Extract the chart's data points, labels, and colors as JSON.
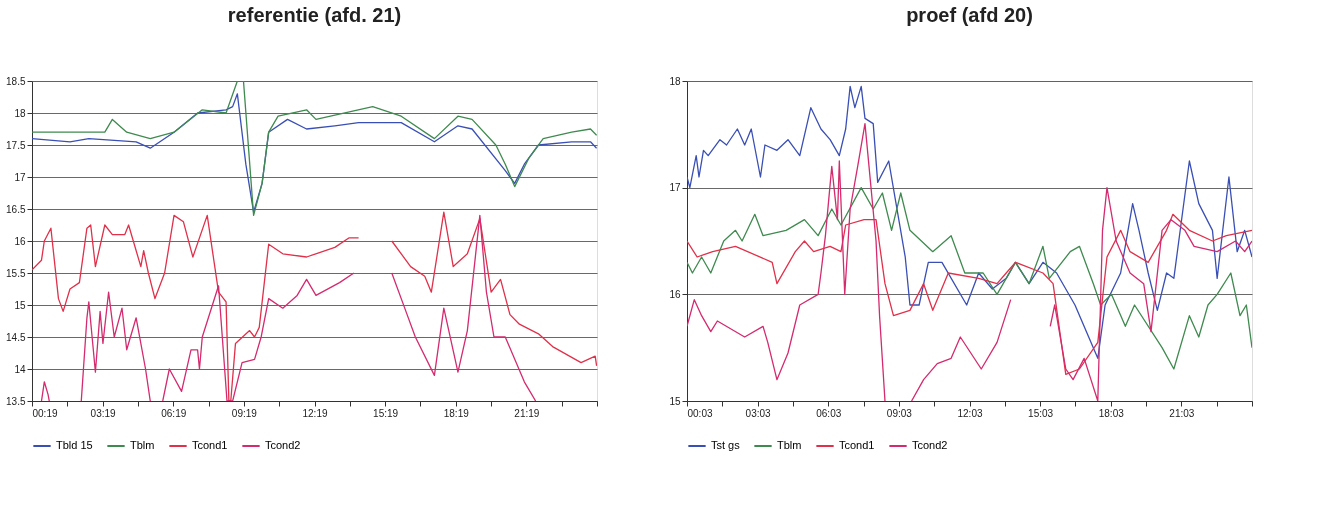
{
  "chart_data": [
    {
      "type": "line",
      "title": "referentie (afd. 21)",
      "grid": "y",
      "legend": "bottom",
      "xlim": [
        0.3167,
        24.3167
      ],
      "xticks": [
        {
          "value": 0.3167,
          "label": "00:19"
        },
        {
          "value": 1.8167,
          "label": null
        },
        {
          "value": 3.3167,
          "label": "03:19"
        },
        {
          "value": 4.8167,
          "label": null
        },
        {
          "value": 6.3167,
          "label": "06:19"
        },
        {
          "value": 7.8167,
          "label": null
        },
        {
          "value": 9.3167,
          "label": "09:19"
        },
        {
          "value": 10.8167,
          "label": null
        },
        {
          "value": 12.3167,
          "label": "12:19"
        },
        {
          "value": 13.8167,
          "label": null
        },
        {
          "value": 15.3167,
          "label": "15:19"
        },
        {
          "value": 16.8167,
          "label": null
        },
        {
          "value": 18.3167,
          "label": "18:19"
        },
        {
          "value": 19.8167,
          "label": null
        },
        {
          "value": 21.3167,
          "label": "21:19"
        },
        {
          "value": 22.8167,
          "label": null
        },
        {
          "value": 24.3167,
          "label": null
        }
      ],
      "ylim": [
        13.5,
        18.5
      ],
      "yticks": [
        13.5,
        14,
        14.5,
        15,
        15.5,
        16,
        16.5,
        17,
        17.5,
        18,
        18.5
      ],
      "series": [
        {
          "name": "Tbld 15",
          "color": "#3a4fb5",
          "x": [
            0.32,
            1.93,
            2.73,
            4.74,
            5.34,
            6.35,
            7.35,
            8.56,
            8.84,
            9.04,
            9.4,
            9.73,
            10.09,
            10.37,
            11.17,
            11.98,
            13.18,
            14.19,
            16.0,
            17.41,
            18.41,
            19.01,
            20.42,
            20.82,
            21.23,
            21.83,
            23.24,
            24.04,
            24.3
          ],
          "values": [
            17.6,
            17.55,
            17.6,
            17.55,
            17.45,
            17.7,
            18.0,
            18.05,
            18.1,
            18.3,
            17.2,
            16.45,
            16.9,
            17.7,
            17.9,
            17.75,
            17.8,
            17.85,
            17.85,
            17.55,
            17.8,
            17.75,
            17.1,
            16.9,
            17.2,
            17.5,
            17.55,
            17.55,
            17.45
          ]
        },
        {
          "name": "Tblm",
          "color": "#3f8a4f",
          "x": [
            0.32,
            3.41,
            3.73,
            4.34,
            5.34,
            6.35,
            7.55,
            8.56,
            9.04,
            9.2,
            9.3,
            9.73,
            10.09,
            10.37,
            10.77,
            11.98,
            12.38,
            14.79,
            16.0,
            17.41,
            18.41,
            19.01,
            20.02,
            20.42,
            20.82,
            21.43,
            22.03,
            23.24,
            24.04,
            24.3
          ],
          "values": [
            17.7,
            17.7,
            17.9,
            17.7,
            17.6,
            17.7,
            18.05,
            18.0,
            18.5,
            null,
            18.5,
            16.4,
            16.9,
            17.7,
            17.95,
            18.05,
            17.9,
            18.1,
            17.95,
            17.6,
            17.95,
            17.9,
            17.5,
            17.2,
            16.85,
            17.3,
            17.6,
            17.7,
            17.75,
            17.65
          ]
        },
        {
          "name": "Tcond1",
          "color": "#e0304a",
          "x": [
            0.32,
            0.72,
            0.84,
            1.12,
            1.44,
            1.64,
            1.93,
            2.33,
            2.65,
            2.81,
            3.01,
            3.41,
            3.73,
            4.26,
            4.42,
            4.94,
            5.06,
            5.26,
            5.54,
            5.95,
            6.35,
            6.75,
            7.15,
            7.76,
            8.24,
            8.56,
            8.68,
            8.76,
            8.96,
            9.56,
            9.77,
            9.97,
            10.37,
            10.97,
            11.98,
            13.18,
            13.79,
            14.19,
            14.5,
            15.6,
            16.4,
            17.0,
            17.28,
            17.81,
            18.21,
            18.81,
            19.34,
            19.82,
            20.22,
            20.62,
            21.02,
            21.83,
            22.43,
            23.64,
            24.24,
            24.3
          ],
          "values": [
            15.55,
            15.7,
            16.0,
            16.2,
            15.1,
            14.9,
            15.25,
            15.35,
            16.2,
            16.25,
            15.6,
            16.25,
            16.1,
            16.1,
            16.25,
            15.6,
            15.85,
            15.5,
            15.1,
            15.5,
            16.4,
            16.3,
            15.75,
            16.4,
            15.2,
            15.05,
            13.5,
            13.5,
            14.4,
            14.6,
            14.5,
            14.65,
            15.95,
            15.8,
            15.75,
            15.9,
            16.05,
            16.05,
            null,
            16.0,
            15.6,
            15.45,
            15.2,
            16.45,
            15.6,
            15.8,
            16.35,
            15.2,
            15.4,
            14.85,
            14.7,
            14.55,
            14.35,
            14.1,
            14.2,
            14.05
          ]
        },
        {
          "name": "Tcond2",
          "color": "#d42a6e",
          "x": [
            0.72,
            0.84,
            1.0,
            1.05,
            1.2,
            2.41,
            2.65,
            2.73,
            3.01,
            3.21,
            3.33,
            3.57,
            3.81,
            4.14,
            4.34,
            4.74,
            5.14,
            5.34,
            5.6,
            5.87,
            6.15,
            6.67,
            7.07,
            7.35,
            7.43,
            7.55,
            8.24,
            8.6,
            8.84,
            9.24,
            9.77,
            10.05,
            10.37,
            10.97,
            11.58,
            11.98,
            12.38,
            13.38,
            13.99,
            14.3,
            15.6,
            16.2,
            16.6,
            17.41,
            17.81,
            18.41,
            18.81,
            19.34,
            19.62,
            19.94,
            20.42,
            21.23,
            21.71
          ],
          "values": [
            13.5,
            13.8,
            13.6,
            13.5,
            null,
            13.5,
            14.8,
            15.05,
            13.95,
            14.9,
            14.4,
            15.2,
            14.5,
            14.95,
            14.3,
            14.8,
            14.0,
            13.5,
            null,
            13.5,
            14.0,
            13.65,
            14.3,
            14.3,
            14.0,
            14.5,
            15.3,
            13.5,
            13.5,
            14.1,
            14.15,
            14.5,
            15.1,
            14.95,
            15.15,
            15.4,
            15.15,
            15.35,
            15.5,
            null,
            15.5,
            14.9,
            14.5,
            13.9,
            14.95,
            13.95,
            14.6,
            16.4,
            15.2,
            14.5,
            14.5,
            13.8,
            13.5
          ]
        }
      ]
    },
    {
      "type": "line",
      "title": "proef (afd 20)",
      "grid": "y",
      "legend": "bottom",
      "xlim": [
        0.05,
        24.05
      ],
      "xticks": [
        {
          "value": 0.05,
          "label": "00:03"
        },
        {
          "value": 1.55,
          "label": null
        },
        {
          "value": 3.05,
          "label": "03:03"
        },
        {
          "value": 4.55,
          "label": null
        },
        {
          "value": 6.05,
          "label": "06:03"
        },
        {
          "value": 7.55,
          "label": null
        },
        {
          "value": 9.05,
          "label": "09:03"
        },
        {
          "value": 10.55,
          "label": null
        },
        {
          "value": 12.05,
          "label": "12:03"
        },
        {
          "value": 13.55,
          "label": null
        },
        {
          "value": 15.05,
          "label": "15:03"
        },
        {
          "value": 16.55,
          "label": null
        },
        {
          "value": 18.05,
          "label": "18:03"
        },
        {
          "value": 19.55,
          "label": null
        },
        {
          "value": 21.05,
          "label": "21:03"
        },
        {
          "value": 22.55,
          "label": null
        },
        {
          "value": 24.05,
          "label": null
        }
      ],
      "ylim": [
        15,
        18
      ],
      "yticks": [
        15,
        16,
        17,
        18
      ],
      "series": [
        {
          "name": "Tst gs",
          "color": "#3a4fb5",
          "x": [
            0.05,
            0.17,
            0.44,
            0.56,
            0.75,
            0.95,
            1.45,
            1.73,
            2.19,
            2.5,
            2.78,
            3.17,
            3.36,
            3.87,
            4.34,
            4.84,
            5.31,
            5.74,
            6.13,
            6.52,
            6.79,
            6.98,
            7.18,
            7.45,
            7.61,
            7.96,
            8.15,
            8.62,
            8.93,
            9.32,
            9.52,
            9.91,
            10.3,
            10.88,
            11.93,
            12.44,
            13.02,
            13.61,
            14.0,
            14.58,
            15.17,
            15.75,
            16.53,
            17.5,
            17.81,
            18.47,
            18.98,
            19.25,
            19.64,
            20.03,
            20.42,
            20.73,
            21.39,
            21.79,
            22.37,
            22.57,
            23.07,
            23.42,
            23.74,
            24.05
          ],
          "values": [
            17.1,
            17.0,
            17.3,
            17.1,
            17.35,
            17.3,
            17.45,
            17.4,
            17.55,
            17.4,
            17.55,
            17.1,
            17.4,
            17.35,
            17.45,
            17.3,
            17.75,
            17.55,
            17.45,
            17.3,
            17.55,
            17.95,
            17.75,
            17.95,
            17.65,
            17.6,
            17.05,
            17.25,
            16.85,
            16.35,
            15.9,
            15.9,
            16.3,
            16.3,
            15.9,
            16.2,
            16.05,
            16.15,
            16.3,
            16.1,
            16.3,
            16.2,
            15.9,
            15.4,
            15.9,
            16.2,
            16.85,
            16.6,
            16.2,
            15.85,
            16.2,
            16.15,
            17.25,
            16.85,
            16.6,
            16.15,
            17.1,
            16.4,
            16.6,
            16.35
          ]
        },
        {
          "name": "Tblm",
          "color": "#3f8a4f",
          "x": [
            0.05,
            0.28,
            0.67,
            1.06,
            1.61,
            2.11,
            2.39,
            2.93,
            3.28,
            4.26,
            5.04,
            5.62,
            6.2,
            6.59,
            7.45,
            7.96,
            8.35,
            8.74,
            9.13,
            9.52,
            10.49,
            11.27,
            11.85,
            12.63,
            13.22,
            14.0,
            14.58,
            15.17,
            15.44,
            16.33,
            16.72,
            17.31,
            17.62,
            18.08,
            18.67,
            19.06,
            20.23,
            20.73,
            21.39,
            21.79,
            22.18,
            22.57,
            23.15,
            23.54,
            23.81,
            24.05
          ],
          "values": [
            16.3,
            16.2,
            16.35,
            16.2,
            16.5,
            16.6,
            16.5,
            16.75,
            16.55,
            16.6,
            16.7,
            16.55,
            16.8,
            16.65,
            17.0,
            16.8,
            16.95,
            16.6,
            16.95,
            16.6,
            16.4,
            16.55,
            16.2,
            16.2,
            16.0,
            16.3,
            16.1,
            16.45,
            16.15,
            16.4,
            16.45,
            16.1,
            15.9,
            16.0,
            15.7,
            15.9,
            15.5,
            15.3,
            15.8,
            15.6,
            15.9,
            16.0,
            16.2,
            15.8,
            15.9,
            15.5
          ]
        },
        {
          "name": "Tcond1",
          "color": "#e0304a",
          "x": [
            0.05,
            0.48,
            1.14,
            2.11,
            3.67,
            3.87,
            4.65,
            5.04,
            5.43,
            6.13,
            6.59,
            6.79,
            7.57,
            8.08,
            8.46,
            8.82,
            9.52,
            10.1,
            10.49,
            11.15,
            12.44,
            13.22,
            13.61,
            14.0,
            15.17,
            15.6,
            16.14,
            16.72,
            17.5,
            17.89,
            18.47,
            18.87,
            19.64,
            20.42,
            20.69,
            21.39,
            22.37,
            22.96,
            24.05
          ],
          "values": [
            16.5,
            16.35,
            16.4,
            16.45,
            16.3,
            16.1,
            16.4,
            16.5,
            16.4,
            16.45,
            16.4,
            16.65,
            16.7,
            16.7,
            16.1,
            15.8,
            15.85,
            16.1,
            15.85,
            16.2,
            16.15,
            16.1,
            16.2,
            16.3,
            16.2,
            16.1,
            15.25,
            15.3,
            15.55,
            16.35,
            16.6,
            16.4,
            16.3,
            16.6,
            16.75,
            16.6,
            16.5,
            16.55,
            16.6
          ]
        },
        {
          "name": "Tcond2",
          "color": "#d42a6e",
          "x": [
            0.05,
            0.36,
            0.67,
            1.06,
            1.34,
            2.5,
            3.28,
            3.48,
            3.87,
            4.34,
            4.84,
            5.62,
            5.74,
            5.93,
            6.2,
            6.44,
            6.52,
            6.75,
            6.98,
            7.3,
            7.61,
            8.08,
            8.23,
            8.46,
            8.6,
            9.59,
            10.1,
            10.68,
            11.27,
            11.66,
            12.55,
            13.22,
            13.8,
            14.0,
            15.48,
            15.67,
            16.14,
            16.45,
            16.92,
            17.5,
            17.7,
            17.89,
            18.28,
            18.87,
            19.45,
            19.76,
            20.23,
            20.61,
            21.2,
            21.59,
            22.57,
            23.35,
            23.74,
            24.05
          ],
          "values": [
            15.7,
            15.95,
            15.8,
            15.65,
            15.75,
            15.6,
            15.7,
            15.55,
            15.2,
            15.45,
            15.9,
            16.0,
            16.2,
            16.55,
            17.2,
            16.7,
            17.25,
            16.0,
            16.8,
            17.2,
            17.6,
            16.5,
            15.8,
            15.0,
            null,
            15.0,
            15.2,
            15.35,
            15.4,
            15.6,
            15.3,
            15.55,
            15.95,
            null,
            15.7,
            15.9,
            15.3,
            15.2,
            15.4,
            15.0,
            16.6,
            17.0,
            16.5,
            16.2,
            16.1,
            15.65,
            16.6,
            16.7,
            16.6,
            16.45,
            16.4,
            16.5,
            16.4,
            16.5
          ]
        }
      ]
    }
  ]
}
